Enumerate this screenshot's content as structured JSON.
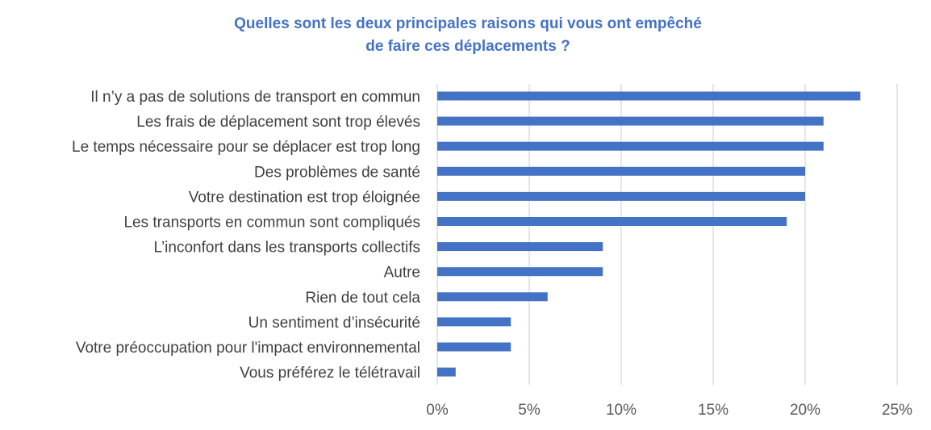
{
  "chart_data": {
    "type": "bar",
    "orientation": "horizontal",
    "title_lines": [
      "Quelles sont les deux principales raisons qui vous ont empêché",
      "de faire ces déplacements ?"
    ],
    "categories": [
      "Il n’y a pas de solutions de transport en commun",
      "Les frais de déplacement sont trop élevés",
      "Le temps nécessaire pour se déplacer est trop long",
      "Des problèmes de santé",
      "Votre destination est trop éloignée",
      "Les transports en commun sont compliqués",
      "L’inconfort dans les transports collectifs",
      "Autre",
      "Rien de tout cela",
      "Un sentiment d’insécurité",
      "Votre préoccupation pour l'impact environnemental",
      "Vous préférez le télétravail"
    ],
    "values": [
      23,
      21,
      21,
      20,
      20,
      19,
      9,
      9,
      6,
      4,
      4,
      1
    ],
    "unit": "%",
    "xlim": [
      0,
      25
    ],
    "x_ticks": [
      0,
      5,
      10,
      15,
      20,
      25
    ],
    "x_tick_labels": [
      "0%",
      "5%",
      "10%",
      "15%",
      "20%",
      "25%"
    ],
    "grid": "vertical",
    "legend": "none",
    "bar_color": "#4472C4",
    "grid_color": "#D9D9D9",
    "title_color": "#4472C4"
  }
}
